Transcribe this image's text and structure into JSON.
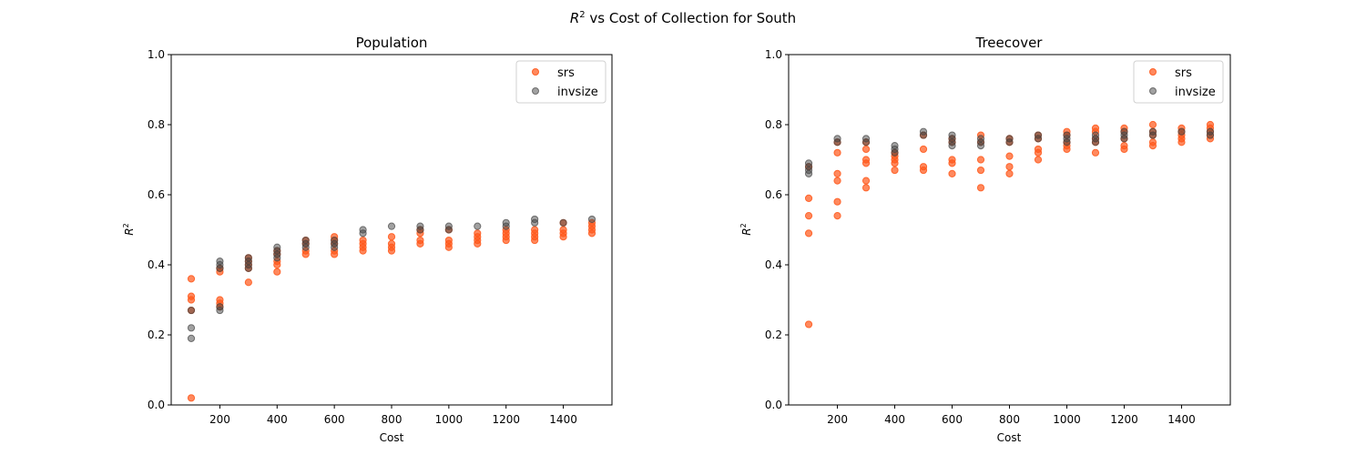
{
  "figure": {
    "suptitle_prefix": "R",
    "suptitle_superscript": "2",
    "suptitle_suffix": " vs Cost of Collection for South"
  },
  "colors": {
    "srs": "#ff5719",
    "invsize": "#444444"
  },
  "chart_data": [
    {
      "type": "scatter",
      "title": "Population",
      "xlabel": "Cost",
      "ylabel": "R",
      "ylabel_superscript": "2",
      "ylim": [
        0,
        1
      ],
      "yticks": [
        "0.0",
        "0.2",
        "0.4",
        "0.6",
        "0.8",
        "1.0"
      ],
      "xticks": [
        "200",
        "400",
        "600",
        "800",
        "1000",
        "1200",
        "1400"
      ],
      "legend_position": "top-right",
      "grid": false,
      "series": [
        {
          "name": "srs",
          "color": "#ff5719",
          "points": [
            [
              100,
              0.02
            ],
            [
              100,
              0.27
            ],
            [
              100,
              0.3
            ],
            [
              100,
              0.31
            ],
            [
              100,
              0.36
            ],
            [
              200,
              0.28
            ],
            [
              200,
              0.29
            ],
            [
              200,
              0.3
            ],
            [
              200,
              0.38
            ],
            [
              200,
              0.39
            ],
            [
              300,
              0.35
            ],
            [
              300,
              0.39
            ],
            [
              300,
              0.4
            ],
            [
              300,
              0.41
            ],
            [
              300,
              0.42
            ],
            [
              400,
              0.38
            ],
            [
              400,
              0.4
            ],
            [
              400,
              0.41
            ],
            [
              400,
              0.43
            ],
            [
              400,
              0.44
            ],
            [
              500,
              0.43
            ],
            [
              500,
              0.44
            ],
            [
              500,
              0.46
            ],
            [
              500,
              0.47
            ],
            [
              600,
              0.43
            ],
            [
              600,
              0.44
            ],
            [
              600,
              0.46
            ],
            [
              600,
              0.47
            ],
            [
              600,
              0.48
            ],
            [
              700,
              0.44
            ],
            [
              700,
              0.45
            ],
            [
              700,
              0.46
            ],
            [
              700,
              0.47
            ],
            [
              800,
              0.44
            ],
            [
              800,
              0.45
            ],
            [
              800,
              0.46
            ],
            [
              800,
              0.48
            ],
            [
              900,
              0.46
            ],
            [
              900,
              0.47
            ],
            [
              900,
              0.49
            ],
            [
              900,
              0.5
            ],
            [
              1000,
              0.45
            ],
            [
              1000,
              0.46
            ],
            [
              1000,
              0.47
            ],
            [
              1000,
              0.5
            ],
            [
              1100,
              0.46
            ],
            [
              1100,
              0.47
            ],
            [
              1100,
              0.48
            ],
            [
              1100,
              0.49
            ],
            [
              1200,
              0.47
            ],
            [
              1200,
              0.48
            ],
            [
              1200,
              0.49
            ],
            [
              1200,
              0.5
            ],
            [
              1300,
              0.47
            ],
            [
              1300,
              0.48
            ],
            [
              1300,
              0.49
            ],
            [
              1300,
              0.5
            ],
            [
              1400,
              0.48
            ],
            [
              1400,
              0.49
            ],
            [
              1400,
              0.5
            ],
            [
              1400,
              0.52
            ],
            [
              1500,
              0.49
            ],
            [
              1500,
              0.5
            ],
            [
              1500,
              0.51
            ],
            [
              1500,
              0.52
            ]
          ]
        },
        {
          "name": "invsize",
          "color": "#444444",
          "points": [
            [
              100,
              0.19
            ],
            [
              100,
              0.22
            ],
            [
              100,
              0.27
            ],
            [
              200,
              0.27
            ],
            [
              200,
              0.28
            ],
            [
              200,
              0.39
            ],
            [
              200,
              0.4
            ],
            [
              200,
              0.41
            ],
            [
              300,
              0.39
            ],
            [
              300,
              0.4
            ],
            [
              300,
              0.41
            ],
            [
              300,
              0.42
            ],
            [
              400,
              0.42
            ],
            [
              400,
              0.43
            ],
            [
              400,
              0.44
            ],
            [
              400,
              0.45
            ],
            [
              500,
              0.45
            ],
            [
              500,
              0.46
            ],
            [
              500,
              0.47
            ],
            [
              600,
              0.45
            ],
            [
              600,
              0.46
            ],
            [
              600,
              0.47
            ],
            [
              700,
              0.49
            ],
            [
              700,
              0.5
            ],
            [
              800,
              0.51
            ],
            [
              900,
              0.5
            ],
            [
              900,
              0.51
            ],
            [
              1000,
              0.5
            ],
            [
              1000,
              0.51
            ],
            [
              1100,
              0.51
            ],
            [
              1200,
              0.51
            ],
            [
              1200,
              0.52
            ],
            [
              1300,
              0.52
            ],
            [
              1300,
              0.53
            ],
            [
              1400,
              0.52
            ],
            [
              1500,
              0.53
            ]
          ]
        }
      ]
    },
    {
      "type": "scatter",
      "title": "Treecover",
      "xlabel": "Cost",
      "ylabel": "R",
      "ylabel_superscript": "2",
      "ylim": [
        0,
        1
      ],
      "yticks": [
        "0.0",
        "0.2",
        "0.4",
        "0.6",
        "0.8",
        "1.0"
      ],
      "xticks": [
        "200",
        "400",
        "600",
        "800",
        "1000",
        "1200",
        "1400"
      ],
      "legend_position": "top-right",
      "grid": false,
      "series": [
        {
          "name": "srs",
          "color": "#ff5719",
          "points": [
            [
              100,
              0.23
            ],
            [
              100,
              0.49
            ],
            [
              100,
              0.54
            ],
            [
              100,
              0.59
            ],
            [
              100,
              0.68
            ],
            [
              200,
              0.54
            ],
            [
              200,
              0.58
            ],
            [
              200,
              0.64
            ],
            [
              200,
              0.66
            ],
            [
              200,
              0.72
            ],
            [
              200,
              0.75
            ],
            [
              300,
              0.62
            ],
            [
              300,
              0.64
            ],
            [
              300,
              0.69
            ],
            [
              300,
              0.7
            ],
            [
              300,
              0.73
            ],
            [
              300,
              0.75
            ],
            [
              400,
              0.67
            ],
            [
              400,
              0.69
            ],
            [
              400,
              0.7
            ],
            [
              400,
              0.71
            ],
            [
              400,
              0.72
            ],
            [
              500,
              0.67
            ],
            [
              500,
              0.68
            ],
            [
              500,
              0.73
            ],
            [
              500,
              0.77
            ],
            [
              600,
              0.66
            ],
            [
              600,
              0.69
            ],
            [
              600,
              0.7
            ],
            [
              600,
              0.75
            ],
            [
              600,
              0.76
            ],
            [
              700,
              0.62
            ],
            [
              700,
              0.67
            ],
            [
              700,
              0.7
            ],
            [
              700,
              0.75
            ],
            [
              700,
              0.77
            ],
            [
              800,
              0.66
            ],
            [
              800,
              0.68
            ],
            [
              800,
              0.71
            ],
            [
              800,
              0.75
            ],
            [
              800,
              0.76
            ],
            [
              900,
              0.7
            ],
            [
              900,
              0.72
            ],
            [
              900,
              0.73
            ],
            [
              900,
              0.76
            ],
            [
              900,
              0.77
            ],
            [
              1000,
              0.73
            ],
            [
              1000,
              0.74
            ],
            [
              1000,
              0.75
            ],
            [
              1000,
              0.77
            ],
            [
              1000,
              0.78
            ],
            [
              1100,
              0.72
            ],
            [
              1100,
              0.75
            ],
            [
              1100,
              0.76
            ],
            [
              1100,
              0.78
            ],
            [
              1100,
              0.79
            ],
            [
              1200,
              0.73
            ],
            [
              1200,
              0.74
            ],
            [
              1200,
              0.76
            ],
            [
              1200,
              0.78
            ],
            [
              1200,
              0.79
            ],
            [
              1300,
              0.74
            ],
            [
              1300,
              0.75
            ],
            [
              1300,
              0.77
            ],
            [
              1300,
              0.78
            ],
            [
              1300,
              0.8
            ],
            [
              1400,
              0.75
            ],
            [
              1400,
              0.76
            ],
            [
              1400,
              0.77
            ],
            [
              1400,
              0.78
            ],
            [
              1400,
              0.79
            ],
            [
              1500,
              0.76
            ],
            [
              1500,
              0.77
            ],
            [
              1500,
              0.78
            ],
            [
              1500,
              0.79
            ],
            [
              1500,
              0.8
            ]
          ]
        },
        {
          "name": "invsize",
          "color": "#444444",
          "points": [
            [
              100,
              0.66
            ],
            [
              100,
              0.67
            ],
            [
              100,
              0.68
            ],
            [
              100,
              0.69
            ],
            [
              200,
              0.75
            ],
            [
              200,
              0.76
            ],
            [
              300,
              0.75
            ],
            [
              300,
              0.76
            ],
            [
              400,
              0.72
            ],
            [
              400,
              0.73
            ],
            [
              400,
              0.74
            ],
            [
              500,
              0.77
            ],
            [
              500,
              0.78
            ],
            [
              600,
              0.74
            ],
            [
              600,
              0.75
            ],
            [
              600,
              0.76
            ],
            [
              600,
              0.77
            ],
            [
              700,
              0.74
            ],
            [
              700,
              0.75
            ],
            [
              700,
              0.76
            ],
            [
              800,
              0.75
            ],
            [
              800,
              0.76
            ],
            [
              900,
              0.76
            ],
            [
              900,
              0.77
            ],
            [
              1000,
              0.75
            ],
            [
              1000,
              0.76
            ],
            [
              1000,
              0.77
            ],
            [
              1100,
              0.75
            ],
            [
              1100,
              0.76
            ],
            [
              1100,
              0.77
            ],
            [
              1200,
              0.76
            ],
            [
              1200,
              0.77
            ],
            [
              1200,
              0.78
            ],
            [
              1300,
              0.77
            ],
            [
              1300,
              0.78
            ],
            [
              1400,
              0.78
            ],
            [
              1500,
              0.77
            ],
            [
              1500,
              0.78
            ]
          ]
        }
      ]
    }
  ]
}
